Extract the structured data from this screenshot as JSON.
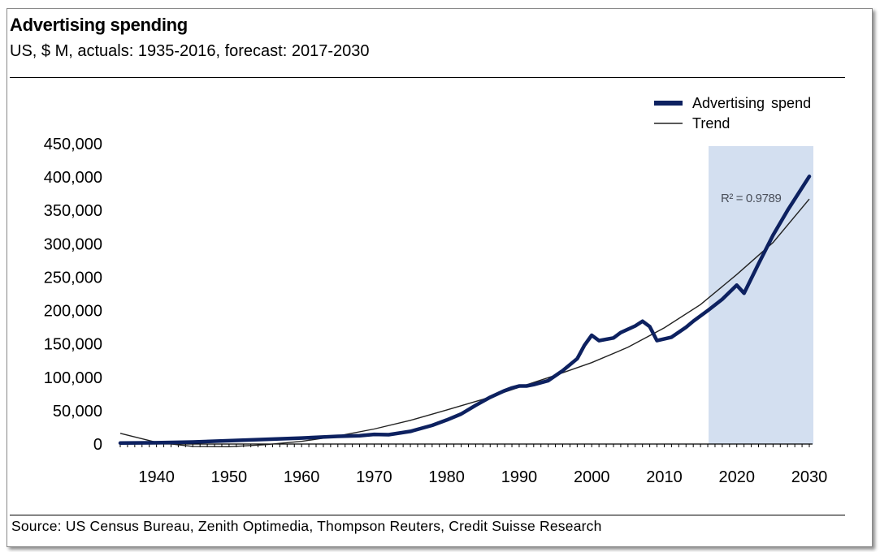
{
  "header": {
    "title": "Advertising spending",
    "subtitle": "US, $ M, actuals: 1935-2016, forecast: 2017-2030"
  },
  "footer": {
    "source": "Source: US Census Bureau, Zenith Optimedia, Thompson Reuters, Credit Suisse Research"
  },
  "colors": {
    "series": "#0d2160",
    "trend": "#222222",
    "forecast_band": "#d3dff0"
  },
  "chart_data": {
    "type": "line",
    "title": "Advertising spending",
    "subtitle": "US, $ M, actuals: 1935-2016, forecast: 2017-2030",
    "xlabel": "",
    "ylabel": "",
    "xlim": [
      1935,
      2030
    ],
    "ylim": [
      0,
      450000
    ],
    "x_ticks": [
      "1940",
      "1950",
      "1960",
      "1970",
      "1980",
      "1990",
      "2000",
      "2010",
      "2020",
      "2030"
    ],
    "y_ticks": [
      "450,000",
      "400,000",
      "350,000",
      "300,000",
      "250,000",
      "200,000",
      "150,000",
      "100,000",
      "50,000",
      "0"
    ],
    "legend": {
      "position": "top-right",
      "entries": [
        "Advertising spend",
        "Trend"
      ]
    },
    "forecast_region": {
      "from": 2016,
      "to": 2030
    },
    "annotation": "R² = 0.9789",
    "series": [
      {
        "name": "Advertising spend",
        "x": [
          1935,
          1940,
          1945,
          1950,
          1955,
          1960,
          1965,
          1968,
          1970,
          1972,
          1975,
          1978,
          1980,
          1982,
          1984,
          1986,
          1988,
          1989,
          1990,
          1991,
          1992,
          1994,
          1996,
          1998,
          1999,
          2000,
          2001,
          2003,
          2004,
          2006,
          2007,
          2008,
          2009,
          2011,
          2013,
          2014,
          2016,
          2018,
          2020,
          2021,
          2023,
          2025,
          2027,
          2030
        ],
        "values": [
          1500,
          2000,
          3000,
          5000,
          7000,
          9000,
          11500,
          12500,
          14500,
          14000,
          19000,
          28000,
          36000,
          45000,
          58000,
          70000,
          80000,
          84000,
          87000,
          87000,
          89000,
          95000,
          110000,
          128000,
          148000,
          163000,
          155000,
          159000,
          167000,
          177000,
          184000,
          176000,
          155000,
          160000,
          175000,
          184000,
          200000,
          217000,
          238000,
          226000,
          270000,
          313000,
          350000,
          401000
        ]
      },
      {
        "name": "Trend",
        "x": [
          1935,
          1940,
          1945,
          1950,
          1955,
          1960,
          1965,
          1970,
          1975,
          1980,
          1985,
          1990,
          1995,
          2000,
          2005,
          2010,
          2015,
          2020,
          2025,
          2030
        ],
        "values": [
          16000,
          2500,
          -3500,
          -4000,
          -1000,
          4000,
          12000,
          22500,
          35500,
          51000,
          67000,
          85000,
          103000,
          122000,
          145000,
          174000,
          209000,
          254000,
          302000,
          367000
        ]
      }
    ]
  }
}
